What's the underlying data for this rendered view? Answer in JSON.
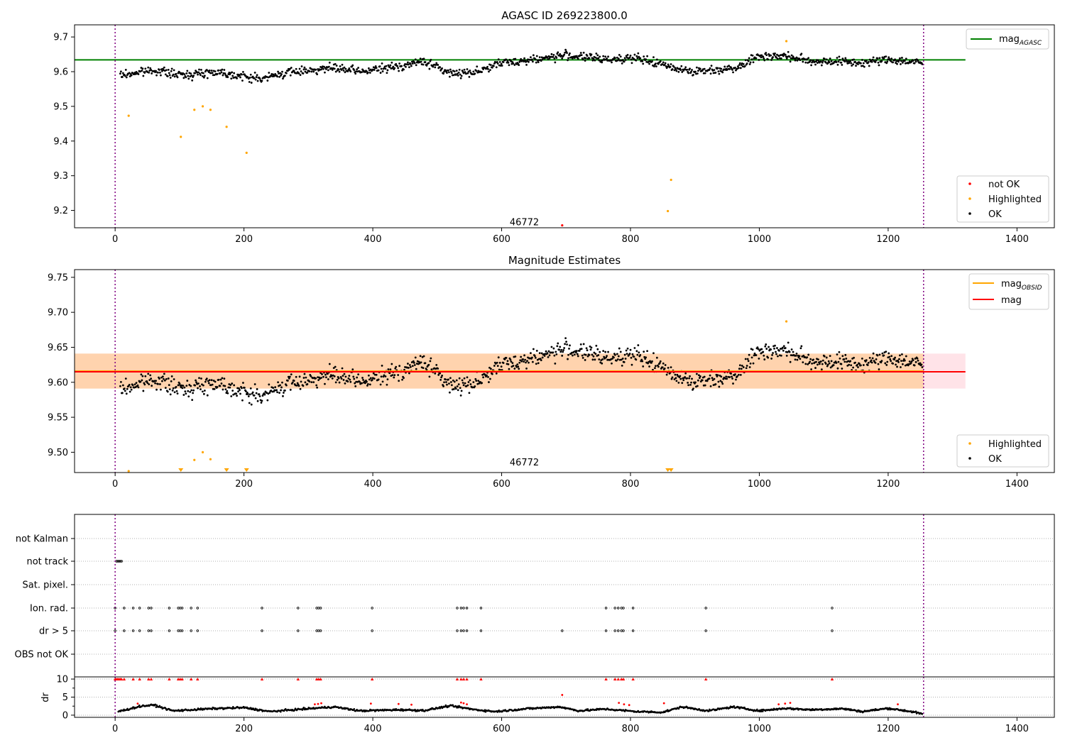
{
  "chart_data": [
    {
      "type": "scatter",
      "title": "AGASC ID 269223800.0",
      "xlim": [
        -63,
        1458
      ],
      "ylim": [
        9.15,
        9.735
      ],
      "x_ticks": [
        0,
        200,
        400,
        600,
        800,
        1000,
        1200,
        1400
      ],
      "y_ticks": [
        9.2,
        9.3,
        9.4,
        9.5,
        9.6,
        9.7
      ],
      "y_tick_labels": [
        "9.2",
        "9.3",
        "9.4",
        "9.5",
        "9.6",
        "9.7"
      ],
      "vlines": [
        0,
        1255
      ],
      "hlines": [
        {
          "name": "mag_AGASC",
          "value": 9.634,
          "x_range": [
            -63,
            1320
          ],
          "color": "#008000"
        }
      ],
      "annotation": {
        "text": "46772",
        "x": 600,
        "y": 9.165
      },
      "legend_upper": [
        {
          "label": "mag",
          "subscript": "AGASC",
          "color": "#008000"
        }
      ],
      "legend_lower": [
        {
          "label": "not OK",
          "color": "#ff0000"
        },
        {
          "label": "Highlighted",
          "color": "#ffa500"
        },
        {
          "label": "OK",
          "color": "#000000"
        }
      ],
      "series": [
        {
          "name": "not OK",
          "color": "#ff0000",
          "points": [
            [
              694,
              9.157
            ]
          ]
        },
        {
          "name": "Highlighted",
          "color": "#ffa500",
          "points": [
            [
              21,
              9.473
            ],
            [
              102,
              9.412
            ],
            [
              123,
              9.49
            ],
            [
              136,
              9.5
            ],
            [
              148,
              9.49
            ],
            [
              173,
              9.441
            ],
            [
              204,
              9.366
            ],
            [
              858,
              9.198
            ],
            [
              863,
              9.288
            ],
            [
              1042,
              9.688
            ]
          ]
        },
        {
          "name": "OK",
          "color": "#000000",
          "trend": [
            [
              10,
              9.59
            ],
            [
              60,
              9.605
            ],
            [
              100,
              9.59
            ],
            [
              160,
              9.6
            ],
            [
              200,
              9.585
            ],
            [
              230,
              9.58
            ],
            [
              260,
              9.595
            ],
            [
              300,
              9.605
            ],
            [
              340,
              9.61
            ],
            [
              380,
              9.6
            ],
            [
              440,
              9.615
            ],
            [
              480,
              9.63
            ],
            [
              520,
              9.595
            ],
            [
              560,
              9.6
            ],
            [
              600,
              9.625
            ],
            [
              650,
              9.635
            ],
            [
              700,
              9.648
            ],
            [
              760,
              9.635
            ],
            [
              800,
              9.64
            ],
            [
              830,
              9.63
            ],
            [
              860,
              9.615
            ],
            [
              900,
              9.6
            ],
            [
              960,
              9.61
            ],
            [
              1000,
              9.645
            ],
            [
              1040,
              9.645
            ],
            [
              1080,
              9.63
            ],
            [
              1120,
              9.63
            ],
            [
              1160,
              9.625
            ],
            [
              1200,
              9.635
            ],
            [
              1254,
              9.625
            ]
          ],
          "spread": 0.022,
          "count": 1150
        }
      ]
    },
    {
      "type": "scatter",
      "title": "Magnitude Estimates",
      "xlim": [
        -63,
        1458
      ],
      "ylim": [
        9.471,
        9.761
      ],
      "x_ticks": [
        0,
        200,
        400,
        600,
        800,
        1000,
        1200,
        1400
      ],
      "y_ticks": [
        9.5,
        9.55,
        9.6,
        9.65,
        9.7,
        9.75
      ],
      "y_tick_labels": [
        "9.50",
        "9.55",
        "9.60",
        "9.65",
        "9.70",
        "9.75"
      ],
      "vlines": [
        0,
        1255
      ],
      "bands": [
        {
          "name": "mag band",
          "range": [
            9.591,
            9.641
          ],
          "color": "#ffc0cb",
          "alpha": 0.45,
          "x_range": [
            -63,
            1320
          ]
        },
        {
          "name": "mag_OBSID band",
          "range": [
            9.591,
            9.641
          ],
          "color": "#ffa500",
          "alpha": 0.25,
          "x_range": [
            -63,
            1255
          ]
        }
      ],
      "hlines": [
        {
          "name": "mag_OBSID",
          "value": 9.616,
          "x_range": [
            -63,
            1255
          ],
          "color": "#ffa500"
        },
        {
          "name": "mag",
          "value": 9.615,
          "x_range": [
            -63,
            1320
          ],
          "color": "#ff0000"
        }
      ],
      "annotation": {
        "text": "46772",
        "x": 600,
        "y": 9.479
      },
      "legend_upper": [
        {
          "label": "mag",
          "subscript": "OBSID",
          "color": "#ffa500"
        },
        {
          "label": "mag",
          "color": "#ff0000"
        }
      ],
      "legend_lower": [
        {
          "label": "Highlighted",
          "color": "#ffa500"
        },
        {
          "label": "OK",
          "color": "#000000"
        }
      ],
      "series": [
        {
          "name": "Highlighted",
          "color": "#ffa500",
          "points": [
            [
              21,
              9.473
            ],
            [
              123,
              9.489
            ],
            [
              136,
              9.5
            ],
            [
              148,
              9.49
            ],
            [
              1042,
              9.687
            ]
          ],
          "below_range": [
            102,
            173,
            204,
            858,
            863
          ]
        },
        {
          "name": "OK",
          "color": "#000000",
          "same_as_panel": 0
        }
      ]
    },
    {
      "type": "scatter",
      "title": "",
      "xlim": [
        -63,
        1458
      ],
      "x_ticks": [
        0,
        200,
        400,
        600,
        800,
        1000,
        1200,
        1400
      ],
      "vlines": [
        0,
        1255
      ],
      "flag_rows": [
        "not Kalman",
        "not track",
        "Sat. pixel.",
        "Ion. rad.",
        "dr > 5",
        "OBS not OK"
      ],
      "flags": {
        "not Kalman": [],
        "not track": [
          2,
          4,
          6,
          8,
          10
        ],
        "Sat. pixel.": [],
        "Ion. rad.": [
          0,
          14,
          28,
          38,
          52,
          56,
          84,
          98,
          101,
          104,
          118,
          128,
          228,
          284,
          313,
          316,
          319,
          399,
          531,
          537,
          541,
          546,
          568,
          762,
          776,
          781,
          786,
          789,
          804,
          917,
          1113
        ],
        "dr > 5": [
          0,
          14,
          28,
          38,
          52,
          56,
          84,
          98,
          101,
          104,
          118,
          128,
          228,
          284,
          313,
          316,
          319,
          399,
          531,
          537,
          541,
          546,
          568,
          694,
          762,
          776,
          781,
          786,
          789,
          804,
          917,
          1113
        ],
        "OBS not OK": []
      },
      "dr_panel": {
        "ylabel": "dr",
        "ylim": [
          -0.6,
          10.6
        ],
        "y_ticks": [
          0,
          5,
          10
        ],
        "red_at_10": [
          0,
          2,
          4,
          6,
          8,
          10,
          14,
          28,
          38,
          52,
          56,
          84,
          98,
          101,
          104,
          118,
          128,
          228,
          284,
          313,
          316,
          319,
          399,
          531,
          537,
          541,
          546,
          568,
          762,
          776,
          781,
          786,
          789,
          804,
          917,
          1113
        ],
        "red_points": [
          [
            35,
            3.2
          ],
          [
            310,
            3.0
          ],
          [
            315,
            3.1
          ],
          [
            320,
            3.3
          ],
          [
            397,
            3.2
          ],
          [
            440,
            3.1
          ],
          [
            460,
            2.9
          ],
          [
            537,
            3.5
          ],
          [
            541,
            3.3
          ],
          [
            546,
            3.0
          ],
          [
            694,
            5.6
          ],
          [
            782,
            3.4
          ],
          [
            790,
            3.0
          ],
          [
            798,
            2.8
          ],
          [
            852,
            3.3
          ],
          [
            1030,
            3.0
          ],
          [
            1040,
            3.2
          ],
          [
            1048,
            3.4
          ],
          [
            1215,
            3.0
          ]
        ],
        "black_trend": [
          [
            5,
            1.0
          ],
          [
            40,
            2.5
          ],
          [
            60,
            2.8
          ],
          [
            90,
            1.2
          ],
          [
            150,
            1.8
          ],
          [
            200,
            2.1
          ],
          [
            240,
            1.0
          ],
          [
            300,
            1.8
          ],
          [
            340,
            2.3
          ],
          [
            380,
            1.2
          ],
          [
            440,
            1.5
          ],
          [
            480,
            1.3
          ],
          [
            520,
            2.6
          ],
          [
            560,
            1.5
          ],
          [
            590,
            1.0
          ],
          [
            640,
            1.8
          ],
          [
            690,
            2.3
          ],
          [
            720,
            1.2
          ],
          [
            760,
            1.7
          ],
          [
            810,
            1.0
          ],
          [
            850,
            0.8
          ],
          [
            880,
            2.3
          ],
          [
            920,
            1.2
          ],
          [
            960,
            2.3
          ],
          [
            1000,
            1.2
          ],
          [
            1040,
            1.9
          ],
          [
            1080,
            1.5
          ],
          [
            1130,
            1.8
          ],
          [
            1160,
            1.0
          ],
          [
            1200,
            1.9
          ],
          [
            1240,
            0.9
          ],
          [
            1254,
            0.2
          ]
        ],
        "count": 1150
      }
    }
  ]
}
